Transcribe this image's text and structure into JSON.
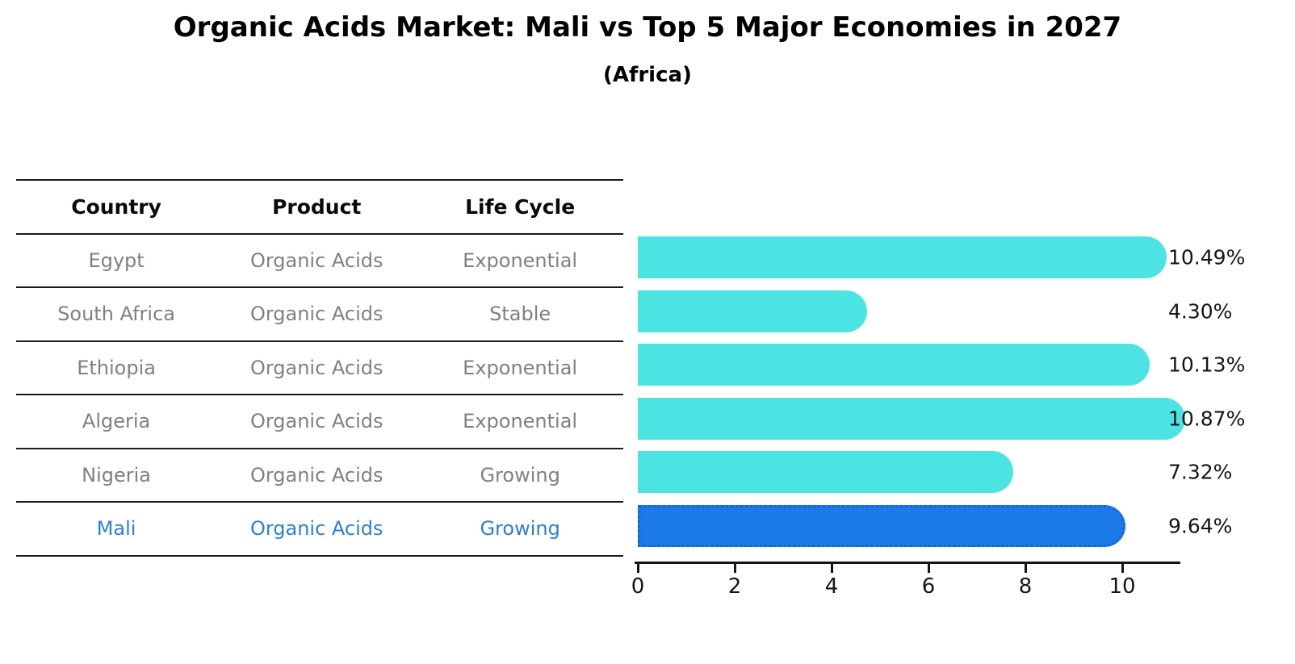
{
  "table": {
    "headers": [
      "Country",
      "Product",
      "Life Cycle"
    ],
    "rows": [
      {
        "country": "Egypt",
        "product": "Organic Acids",
        "life_cycle": "Exponential",
        "highlight": false
      },
      {
        "country": "South Africa",
        "product": "Organic Acids",
        "life_cycle": "Stable",
        "highlight": false
      },
      {
        "country": "Ethiopia",
        "product": "Organic Acids",
        "life_cycle": "Exponential",
        "highlight": false
      },
      {
        "country": "Algeria",
        "product": "Organic Acids",
        "life_cycle": "Exponential",
        "highlight": false
      },
      {
        "country": "Nigeria",
        "product": "Organic Acids",
        "life_cycle": "Growing",
        "highlight": false
      },
      {
        "country": "Mali",
        "product": "Organic Acids",
        "life_cycle": "Growing",
        "highlight": true
      }
    ]
  },
  "chart_data": {
    "type": "bar",
    "orientation": "horizontal",
    "title": "Organic Acids Market: Mali vs Top 5 Major Economies in 2027",
    "subtitle": "(Africa)",
    "categories": [
      "Egypt",
      "South Africa",
      "Ethiopia",
      "Algeria",
      "Nigeria",
      "Mali"
    ],
    "values": [
      10.49,
      4.3,
      10.13,
      10.87,
      7.32,
      9.64
    ],
    "value_labels": [
      "10.49%",
      "4.30%",
      "10.13%",
      "10.87%",
      "7.32%",
      "9.64%"
    ],
    "x_ticks": [
      "0",
      "2",
      "4",
      "6",
      "8",
      "10"
    ],
    "xlim": [
      0,
      11.3
    ],
    "grid": false,
    "legend": "none",
    "highlight_index": 5,
    "colors": {
      "bar": "#4be4e2",
      "highlight_bar": "#1c79e8",
      "highlight_border": "#1565d8",
      "highlight_text": "#2d7fd4",
      "row_text": "#808080",
      "axis_text": "#141414"
    }
  }
}
